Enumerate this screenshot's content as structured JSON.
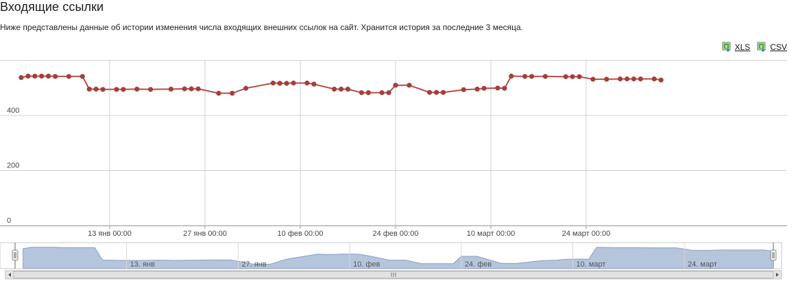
{
  "page": {
    "title": "Входящие ссылки",
    "description": "Ниже представлены данные об истории изменения числа входящих внешних ссылок на сайт. Хранится история за последние 3 месяца."
  },
  "exports": [
    {
      "label": "XLS",
      "icon": "excel-icon"
    },
    {
      "label": "CSV",
      "icon": "excel-icon"
    }
  ],
  "colors": {
    "line": "#b84a47",
    "marker": "#a33f3c",
    "grid": "#cfcfcf",
    "navigator_fill": "#b4c5dc",
    "navigator_line": "#8aa0c1"
  },
  "chart_data": {
    "type": "line",
    "title": "",
    "xlabel": "",
    "ylabel": "",
    "x_start": "2013-12-30",
    "x_end": "2014-03-31",
    "ylim": [
      0,
      560
    ],
    "y_ticks": [
      0,
      200,
      400
    ],
    "grid": true,
    "x_ticks": [
      {
        "date": "2014-01-13",
        "label": "13 янв 00:00"
      },
      {
        "date": "2014-01-27",
        "label": "27 янв 00:00"
      },
      {
        "date": "2014-02-10",
        "label": "10 фев 00:00"
      },
      {
        "date": "2014-02-24",
        "label": "24 фев 00:00"
      },
      {
        "date": "2014-03-10",
        "label": "10 март 00:00"
      },
      {
        "date": "2014-03-24",
        "label": "24 март 00:00"
      }
    ],
    "navigator_ticks": [
      {
        "date": "2014-01-13",
        "label": "13. янв"
      },
      {
        "date": "2014-01-27",
        "label": "27. янв"
      },
      {
        "date": "2014-02-10",
        "label": "10. фев"
      },
      {
        "date": "2014-02-24",
        "label": "24. фев"
      },
      {
        "date": "2014-03-10",
        "label": "10. март"
      },
      {
        "date": "2014-03-24",
        "label": "24. март"
      }
    ],
    "series": [
      {
        "name": "",
        "points": [
          [
            "2013-12-31",
            538
          ],
          [
            "2014-01-01",
            543
          ],
          [
            "2014-01-02",
            543
          ],
          [
            "2014-01-03",
            543
          ],
          [
            "2014-01-04",
            543
          ],
          [
            "2014-01-05",
            542
          ],
          [
            "2014-01-07",
            542
          ],
          [
            "2014-01-09",
            542
          ],
          [
            "2014-01-10",
            496
          ],
          [
            "2014-01-11",
            496
          ],
          [
            "2014-01-12",
            495
          ],
          [
            "2014-01-14",
            495
          ],
          [
            "2014-01-15",
            495
          ],
          [
            "2014-01-17",
            496
          ],
          [
            "2014-01-19",
            495
          ],
          [
            "2014-01-22",
            496
          ],
          [
            "2014-01-24",
            497
          ],
          [
            "2014-01-25",
            497
          ],
          [
            "2014-01-26",
            497
          ],
          [
            "2014-01-29",
            481
          ],
          [
            "2014-01-31",
            481
          ],
          [
            "2014-02-02",
            499
          ],
          [
            "2014-02-06",
            518
          ],
          [
            "2014-02-07",
            517
          ],
          [
            "2014-02-08",
            517
          ],
          [
            "2014-02-09",
            518
          ],
          [
            "2014-02-11",
            518
          ],
          [
            "2014-02-12",
            514
          ],
          [
            "2014-02-15",
            496
          ],
          [
            "2014-02-16",
            496
          ],
          [
            "2014-02-17",
            496
          ],
          [
            "2014-02-19",
            483
          ],
          [
            "2014-02-20",
            483
          ],
          [
            "2014-02-22",
            483
          ],
          [
            "2014-02-23",
            483
          ],
          [
            "2014-02-24",
            510
          ],
          [
            "2014-02-26",
            510
          ],
          [
            "2014-03-01",
            484
          ],
          [
            "2014-03-02",
            484
          ],
          [
            "2014-03-03",
            484
          ],
          [
            "2014-03-06",
            494
          ],
          [
            "2014-03-08",
            496
          ],
          [
            "2014-03-09",
            499
          ],
          [
            "2014-03-11",
            500
          ],
          [
            "2014-03-12",
            499
          ],
          [
            "2014-03-13",
            543
          ],
          [
            "2014-03-15",
            542
          ],
          [
            "2014-03-16",
            542
          ],
          [
            "2014-03-18",
            542
          ],
          [
            "2014-03-21",
            541
          ],
          [
            "2014-03-22",
            541
          ],
          [
            "2014-03-23",
            541
          ],
          [
            "2014-03-25",
            532
          ],
          [
            "2014-03-27",
            532
          ],
          [
            "2014-03-29",
            533
          ],
          [
            "2014-03-30",
            533
          ],
          [
            "2014-03-31",
            533
          ],
          [
            "2014-04-01",
            533
          ],
          [
            "2014-04-03",
            533
          ],
          [
            "2014-04-04",
            529
          ]
        ]
      }
    ],
    "navigator": {
      "series_shape": "area",
      "range_selected": "full"
    }
  }
}
